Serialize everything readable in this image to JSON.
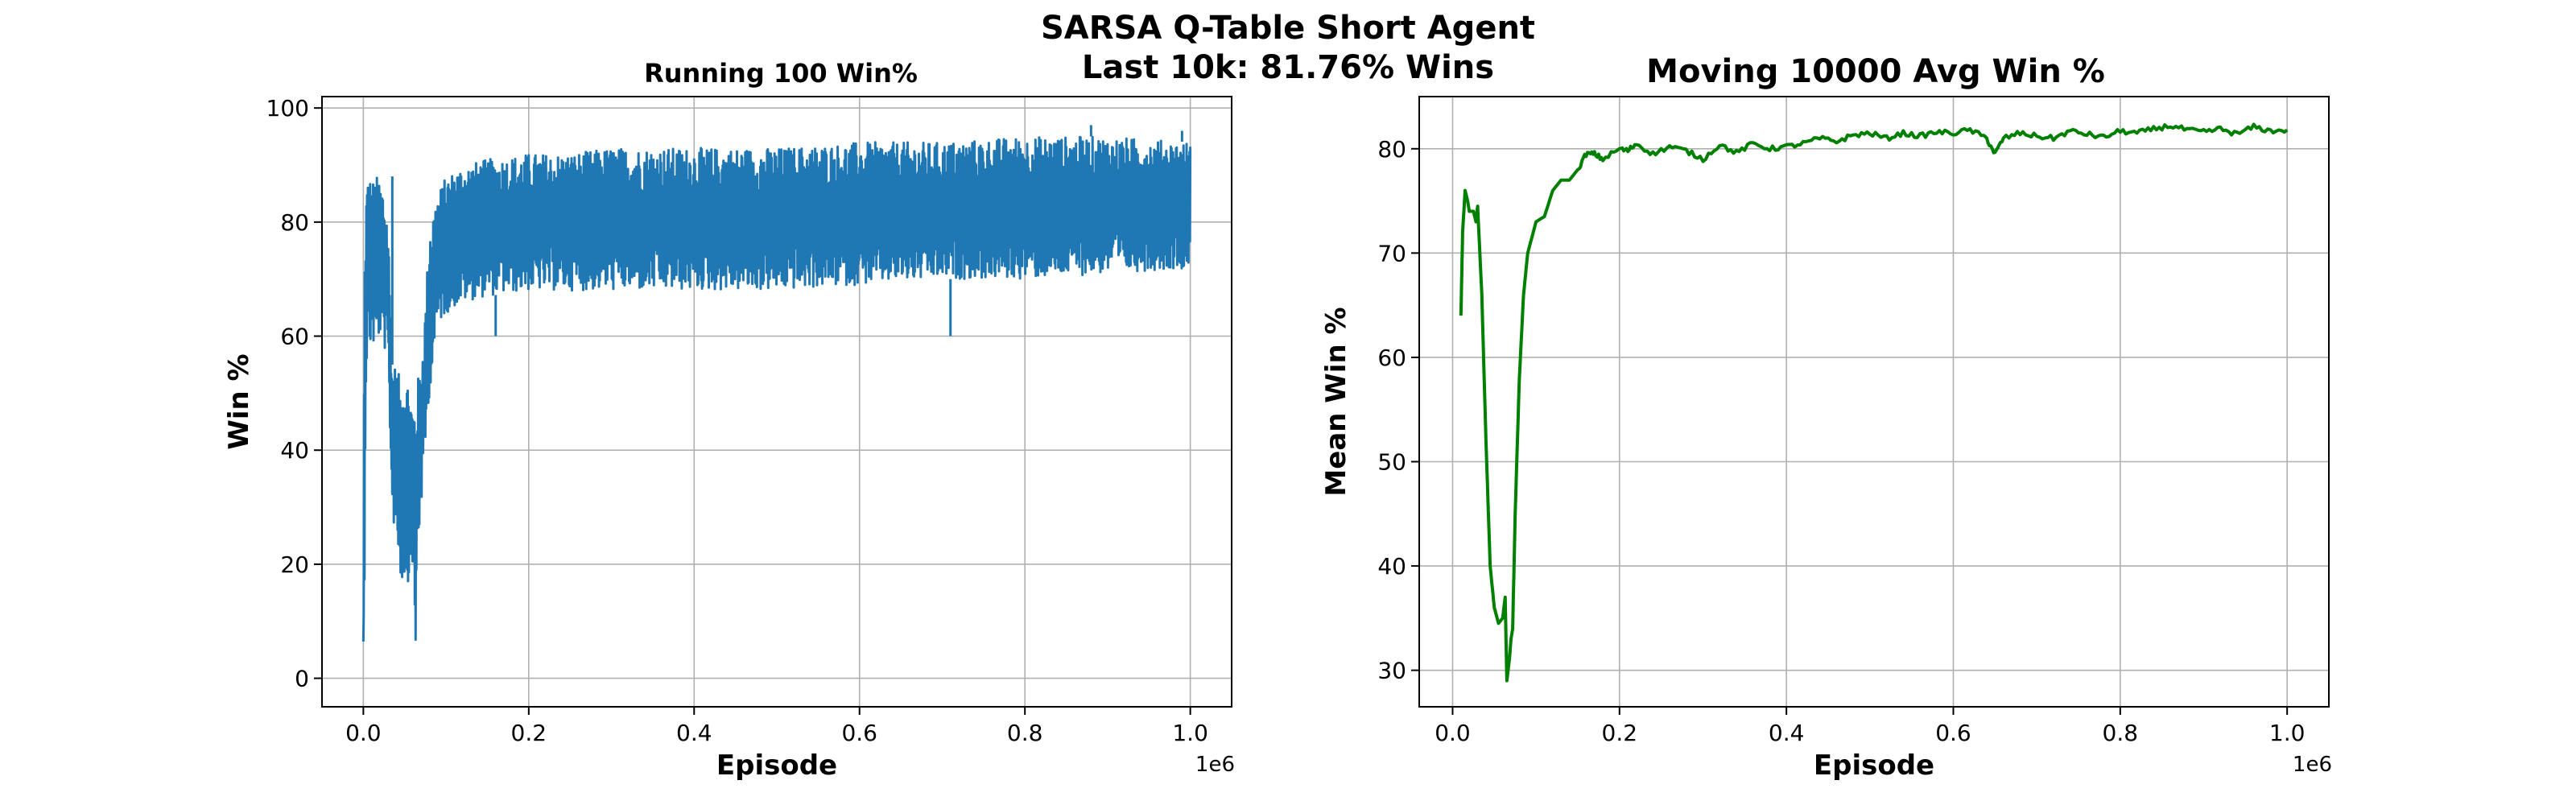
{
  "figure": {
    "suptitle_line1": "SARSA Q-Table Short Agent",
    "suptitle_line2": "Last 10k: 81.76% Wins"
  },
  "chart_data": [
    {
      "type": "line",
      "title": "Running 100 Win%",
      "xlabel": "Episode",
      "ylabel": "Win %",
      "x_offset_label": "1e6",
      "xlim": [
        -50000,
        1050000
      ],
      "ylim": [
        -5,
        102
      ],
      "xticks": [
        0,
        200000,
        400000,
        600000,
        800000,
        1000000
      ],
      "xtick_labels": [
        "0.0",
        "0.2",
        "0.4",
        "0.6",
        "0.8",
        "1.0"
      ],
      "yticks": [
        0,
        20,
        40,
        60,
        80,
        100
      ],
      "ytick_labels": [
        "0",
        "20",
        "40",
        "60",
        "80",
        "100"
      ],
      "grid": true,
      "color": "#1f77b4",
      "series": [
        {
          "x": [
            0,
            1000,
            2000,
            3000,
            5000,
            8000,
            10000,
            15000,
            20000,
            25000,
            30000,
            35000,
            40000,
            45000,
            50000,
            55000,
            60000,
            63000,
            65000,
            70000,
            75000,
            80000,
            90000,
            100000,
            120000,
            150000,
            200000,
            250000,
            300000,
            400000,
            500000,
            600000,
            700000,
            800000,
            900000,
            1000000
          ],
          "upper": [
            7,
            60,
            80,
            85,
            88,
            88,
            87,
            88,
            88,
            86,
            80,
            55,
            55,
            52,
            55,
            52,
            48,
            50,
            52,
            55,
            65,
            80,
            85,
            88,
            90,
            91,
            92,
            92,
            93,
            93,
            93,
            94,
            94,
            95,
            95,
            94
          ],
          "lower": [
            2,
            10,
            30,
            50,
            58,
            58,
            58,
            58,
            60,
            58,
            55,
            28,
            25,
            17,
            17,
            17,
            20,
            0,
            20,
            30,
            40,
            50,
            62,
            64,
            66,
            67,
            68,
            68,
            68,
            68,
            68,
            69,
            70,
            70,
            71,
            72
          ],
          "spikes": [
            [
              35000,
              88
            ],
            [
              63000,
              0
            ],
            [
              160000,
              60
            ],
            [
              710000,
              60
            ],
            [
              880000,
              97
            ],
            [
              990000,
              96
            ]
          ]
        }
      ]
    },
    {
      "type": "line",
      "title": "Moving 10000 Avg Win %",
      "xlabel": "Episode",
      "ylabel": "Mean Win %",
      "x_offset_label": "1e6",
      "xlim": [
        -40000,
        1050000
      ],
      "ylim": [
        26.5,
        85
      ],
      "xticks": [
        0,
        200000,
        400000,
        600000,
        800000,
        1000000
      ],
      "xtick_labels": [
        "0.0",
        "0.2",
        "0.4",
        "0.6",
        "0.8",
        "1.0"
      ],
      "yticks": [
        30,
        40,
        50,
        60,
        70,
        80
      ],
      "ytick_labels": [
        "30",
        "40",
        "50",
        "60",
        "70",
        "80"
      ],
      "grid": true,
      "color": "#008000",
      "series": [
        {
          "x": [
            10000,
            12000,
            15000,
            18000,
            20000,
            25000,
            28000,
            30000,
            35000,
            40000,
            45000,
            50000,
            55000,
            60000,
            63000,
            65000,
            68000,
            70000,
            72000,
            75000,
            80000,
            85000,
            90000,
            100000,
            110000,
            120000,
            130000,
            140000,
            150000,
            160000,
            170000,
            180000,
            200000,
            210000,
            220000,
            240000,
            260000,
            280000,
            300000,
            320000,
            340000,
            360000,
            380000,
            400000,
            420000,
            440000,
            460000,
            480000,
            500000,
            520000,
            540000,
            560000,
            580000,
            600000,
            620000,
            640000,
            650000,
            660000,
            680000,
            700000,
            720000,
            740000,
            760000,
            780000,
            800000,
            820000,
            840000,
            860000,
            880000,
            900000,
            920000,
            940000,
            960000,
            980000,
            1000000
          ],
          "y": [
            64,
            72,
            76,
            75,
            74,
            74,
            73,
            74.5,
            66,
            52,
            40,
            36,
            34.5,
            35,
            37,
            29,
            31,
            33,
            34,
            45,
            58,
            66,
            70,
            73,
            73.5,
            76,
            77,
            77,
            78,
            79.5,
            79.5,
            79,
            80,
            79.8,
            80.5,
            79.5,
            80.2,
            79.8,
            79,
            80.4,
            79.6,
            80.5,
            80,
            80.2,
            80.5,
            81,
            80.7,
            81.3,
            81.5,
            81,
            81.5,
            81.2,
            81.6,
            81.5,
            81.8,
            81,
            79.5,
            81,
            81.5,
            81.2,
            81,
            81.7,
            81.4,
            81.1,
            81.7,
            81.5,
            81.9,
            82.2,
            81.8,
            81.6,
            81.9,
            81.4,
            82.1,
            81.7,
            81.8
          ]
        }
      ]
    }
  ]
}
